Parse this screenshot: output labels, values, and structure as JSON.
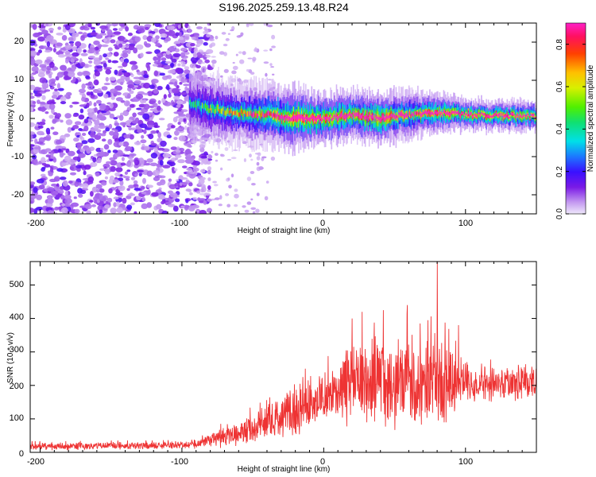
{
  "chart_data": [
    {
      "type": "heatmap",
      "title": "S196.2025.259.13.48.R24",
      "xlabel": "Height of straight line (km)",
      "ylabel": "Frequency (Hz)",
      "xlim": [
        -207,
        150
      ],
      "ylim": [
        -25,
        25
      ],
      "xticks": [
        -200,
        -100,
        0,
        100
      ],
      "yticks": [
        -20,
        -10,
        0,
        10,
        20
      ],
      "x_tick_labels": [
        "-200",
        "-100",
        "0",
        "100"
      ],
      "y_tick_labels": [
        "-20",
        "-10",
        "0",
        "10",
        "20"
      ],
      "colorbar": {
        "label": "Normalized spectral amplitude",
        "range": [
          0.0,
          0.9
        ],
        "ticks": [
          0.0,
          0.2,
          0.4,
          0.6,
          0.8
        ],
        "tick_labels": [
          "0.0",
          "0.2",
          "0.4",
          "0.6",
          "0.8"
        ]
      },
      "noise_region_end_km": -95,
      "band_segments": [
        {
          "x": -95,
          "center_hz": 4.0,
          "halfwidth_hz": 3.0,
          "peak": 0.25
        },
        {
          "x": -80,
          "center_hz": 2.5,
          "halfwidth_hz": 3.0,
          "peak": 0.35
        },
        {
          "x": -60,
          "center_hz": 1.5,
          "halfwidth_hz": 2.5,
          "peak": 0.45
        },
        {
          "x": -40,
          "center_hz": 1.0,
          "halfwidth_hz": 2.5,
          "peak": 0.55
        },
        {
          "x": -20,
          "center_hz": 0.0,
          "halfwidth_hz": 2.5,
          "peak": 0.85
        },
        {
          "x": 0,
          "center_hz": 0.0,
          "halfwidth_hz": 2.0,
          "peak": 0.8
        },
        {
          "x": 20,
          "center_hz": 1.0,
          "halfwidth_hz": 2.0,
          "peak": 0.75
        },
        {
          "x": 40,
          "center_hz": 0.0,
          "halfwidth_hz": 2.0,
          "peak": 0.85
        },
        {
          "x": 60,
          "center_hz": 1.0,
          "halfwidth_hz": 2.0,
          "peak": 0.6
        },
        {
          "x": 80,
          "center_hz": 1.5,
          "halfwidth_hz": 1.5,
          "peak": 0.8
        },
        {
          "x": 100,
          "center_hz": 1.0,
          "halfwidth_hz": 1.2,
          "peak": 0.85
        },
        {
          "x": 150,
          "center_hz": 0.5,
          "halfwidth_hz": 1.2,
          "peak": 0.75
        }
      ]
    },
    {
      "type": "line",
      "xlabel": "Height of straight line (km)",
      "ylabel": "SNR (10 * v/v)",
      "xlim": [
        -207,
        150
      ],
      "ylim": [
        0,
        570
      ],
      "xticks": [
        -200,
        -100,
        0,
        100
      ],
      "yticks": [
        0,
        100,
        200,
        300,
        400,
        500
      ],
      "x_tick_labels": [
        "-200",
        "-100",
        "0",
        "100"
      ],
      "y_tick_labels": [
        "0",
        "100",
        "200",
        "300",
        "400",
        "500"
      ],
      "color": "#ee3333",
      "series": [
        {
          "name": "SNR",
          "x": [
            -207,
            -180,
            -150,
            -120,
            -100,
            -85,
            -75,
            -60,
            -50,
            -40,
            -30,
            -20,
            -12,
            -5,
            0,
            10,
            20,
            30,
            40,
            50,
            60,
            70,
            80,
            90,
            100,
            120,
            150
          ],
          "mean": [
            18,
            18,
            20,
            20,
            22,
            28,
            42,
            55,
            75,
            85,
            105,
            120,
            150,
            140,
            175,
            175,
            210,
            205,
            210,
            200,
            215,
            195,
            220,
            200,
            205,
            205,
            210
          ],
          "amp": [
            12,
            12,
            12,
            12,
            12,
            18,
            30,
            40,
            50,
            55,
            70,
            80,
            90,
            75,
            85,
            90,
            140,
            130,
            145,
            150,
            155,
            140,
            160,
            120,
            60,
            55,
            60
          ]
        }
      ],
      "spikes": [
        {
          "x": -13,
          "y": 250
        },
        {
          "x": 20,
          "y": 400
        },
        {
          "x": 27,
          "y": 420
        },
        {
          "x": 42,
          "y": 425
        },
        {
          "x": 59,
          "y": 440
        },
        {
          "x": 80,
          "y": 570
        },
        {
          "x": 95,
          "y": 380
        }
      ]
    }
  ]
}
